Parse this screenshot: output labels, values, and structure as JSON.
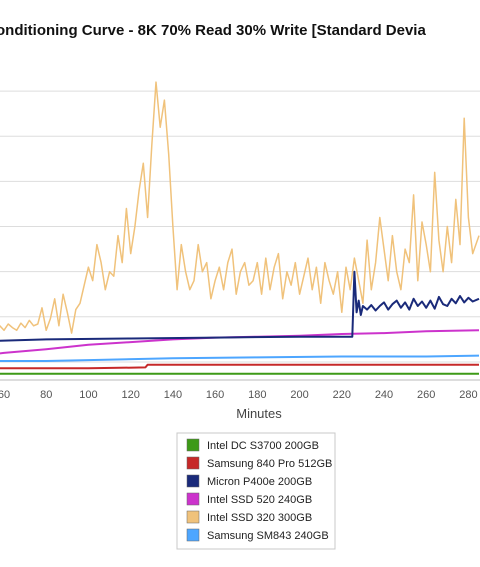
{
  "chart_data": {
    "type": "line",
    "title": "onditioning Curve - 8K 70% Read 30% Write [Standard Devia",
    "xlabel": "Minutes",
    "ylabel": "",
    "xlim": [
      50,
      285
    ],
    "ylim": [
      0,
      3.6
    ],
    "x_ticks": [
      60,
      80,
      100,
      120,
      140,
      160,
      180,
      200,
      220,
      240,
      260,
      280
    ],
    "x_tick_labels": [
      "60",
      "80",
      "100",
      "120",
      "140",
      "160",
      "180",
      "200",
      "220",
      "240",
      "260",
      "280"
    ],
    "y_gridlines": [
      0.2,
      0.7,
      1.2,
      1.7,
      2.2,
      2.7,
      3.2
    ],
    "grid": true,
    "legend_position": "bottom-center",
    "series": [
      {
        "name": "Intel DC S3700 200GB",
        "color": "#3d9a17",
        "x": [
          50,
          80,
          120,
          160,
          200,
          240,
          285
        ],
        "y": [
          0.07,
          0.07,
          0.07,
          0.07,
          0.07,
          0.07,
          0.07
        ]
      },
      {
        "name": "Samsung 840 Pro 512GB",
        "color": "#c62828",
        "x": [
          50,
          100,
          127,
          128,
          160,
          200,
          240,
          285
        ],
        "y": [
          0.13,
          0.13,
          0.14,
          0.17,
          0.17,
          0.17,
          0.17,
          0.17
        ]
      },
      {
        "name": "Micron P400e 200GB",
        "color": "#1a2a7a",
        "x": [
          50,
          80,
          120,
          160,
          200,
          225,
          226,
          227,
          228,
          229,
          230,
          232,
          234,
          236,
          238,
          240,
          242,
          244,
          246,
          248,
          250,
          252,
          254,
          256,
          258,
          260,
          262,
          264,
          266,
          268,
          270,
          272,
          274,
          276,
          278,
          280,
          282,
          285
        ],
        "y": [
          0.43,
          0.45,
          0.46,
          0.47,
          0.48,
          0.48,
          1.2,
          0.75,
          0.88,
          0.72,
          0.82,
          0.78,
          0.83,
          0.77,
          0.82,
          0.86,
          0.78,
          0.84,
          0.88,
          0.8,
          0.86,
          0.78,
          0.9,
          0.82,
          0.87,
          0.8,
          0.88,
          0.79,
          0.92,
          0.84,
          0.82,
          0.9,
          0.85,
          0.93,
          0.86,
          0.91,
          0.87,
          0.9
        ]
      },
      {
        "name": "Intel SSD 520 240GB",
        "color": "#cc33cc",
        "x": [
          50,
          60,
          80,
          100,
          120,
          140,
          160,
          180,
          200,
          220,
          240,
          260,
          285
        ],
        "y": [
          0.27,
          0.3,
          0.34,
          0.39,
          0.42,
          0.45,
          0.47,
          0.48,
          0.49,
          0.51,
          0.52,
          0.54,
          0.55
        ]
      },
      {
        "name": "Intel SSD 320 300GB",
        "color": "#f0c27b",
        "x": [
          50,
          52,
          54,
          56,
          58,
          60,
          62,
          64,
          66,
          68,
          70,
          72,
          74,
          76,
          78,
          80,
          82,
          84,
          86,
          88,
          90,
          92,
          94,
          96,
          98,
          100,
          102,
          104,
          106,
          108,
          110,
          112,
          114,
          116,
          118,
          120,
          122,
          124,
          126,
          128,
          130,
          132,
          134,
          136,
          138,
          140,
          142,
          144,
          146,
          148,
          150,
          152,
          154,
          156,
          158,
          160,
          162,
          164,
          166,
          168,
          170,
          172,
          174,
          176,
          178,
          180,
          182,
          184,
          186,
          188,
          190,
          192,
          194,
          196,
          198,
          200,
          202,
          204,
          206,
          208,
          210,
          212,
          214,
          216,
          218,
          220,
          222,
          224,
          226,
          228,
          230,
          232,
          234,
          236,
          238,
          240,
          242,
          244,
          246,
          248,
          250,
          252,
          254,
          256,
          258,
          260,
          262,
          264,
          266,
          268,
          270,
          272,
          274,
          276,
          278,
          280,
          282,
          285
        ],
        "y": [
          0.6,
          0.5,
          0.58,
          0.52,
          0.6,
          0.55,
          0.62,
          0.58,
          0.55,
          0.63,
          0.58,
          0.66,
          0.6,
          0.62,
          0.8,
          0.55,
          0.68,
          0.9,
          0.6,
          0.95,
          0.75,
          0.52,
          0.78,
          0.85,
          1.05,
          1.25,
          1.1,
          1.5,
          1.3,
          1.0,
          1.2,
          1.15,
          1.6,
          1.3,
          1.9,
          1.4,
          1.7,
          2.1,
          2.4,
          1.8,
          2.6,
          3.3,
          2.8,
          3.1,
          2.5,
          1.7,
          1.0,
          1.5,
          1.2,
          1.0,
          1.1,
          1.5,
          1.2,
          1.3,
          0.9,
          1.1,
          1.25,
          1.0,
          1.3,
          1.45,
          0.95,
          1.2,
          1.3,
          1.05,
          1.1,
          1.3,
          0.95,
          1.35,
          1.0,
          1.25,
          1.4,
          0.9,
          1.2,
          1.05,
          1.3,
          0.95,
          1.15,
          1.35,
          1.0,
          1.25,
          0.85,
          1.3,
          1.1,
          0.95,
          1.2,
          0.75,
          1.25,
          1.0,
          1.35,
          1.1,
          0.85,
          1.55,
          1.0,
          1.3,
          1.8,
          1.45,
          1.1,
          1.6,
          1.2,
          1.0,
          1.45,
          1.3,
          2.05,
          1.1,
          1.75,
          1.5,
          1.2,
          2.3,
          1.55,
          1.2,
          1.7,
          1.3,
          2.0,
          1.5,
          2.9,
          1.8,
          1.4,
          1.6
        ]
      },
      {
        "name": "Samsung SM843 240GB",
        "color": "#4da6ff",
        "x": [
          50,
          80,
          100,
          140,
          180,
          220,
          260,
          285
        ],
        "y": [
          0.21,
          0.21,
          0.22,
          0.24,
          0.25,
          0.26,
          0.26,
          0.27
        ]
      }
    ]
  }
}
